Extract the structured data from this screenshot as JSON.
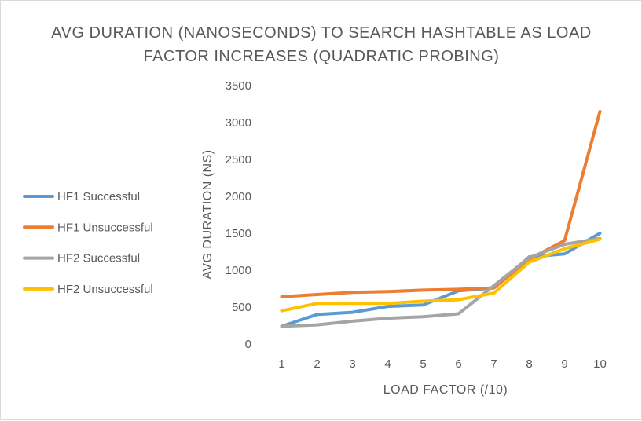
{
  "chart_data": {
    "type": "line",
    "title_lines": [
      "AVG DURATION (NANOSECONDS) TO SEARCH HASHTABLE AS LOAD",
      "FACTOR INCREASES (QUADRATIC PROBING)"
    ],
    "xlabel": "LOAD FACTOR (/10)",
    "ylabel": "AVG DURATION (NS)",
    "categories": [
      "1",
      "2",
      "3",
      "4",
      "5",
      "6",
      "7",
      "8",
      "9",
      "10"
    ],
    "ylim": [
      0,
      3500
    ],
    "yticks": [
      0,
      500,
      1000,
      1500,
      2000,
      2500,
      3000,
      3500
    ],
    "grid": false,
    "legend_position": "left",
    "series": [
      {
        "name": "HF1 Successful",
        "color": "#5B9BD5",
        "values": [
          240,
          400,
          430,
          510,
          530,
          720,
          760,
          1180,
          1220,
          1500
        ]
      },
      {
        "name": "HF1 Unsuccessful",
        "color": "#ED7D31",
        "values": [
          640,
          670,
          700,
          710,
          730,
          740,
          760,
          1150,
          1400,
          3150
        ]
      },
      {
        "name": "HF2 Successful",
        "color": "#A5A5A5",
        "values": [
          240,
          260,
          310,
          350,
          370,
          410,
          790,
          1170,
          1350,
          1430
        ]
      },
      {
        "name": "HF2 Unsuccessful",
        "color": "#FFC000",
        "values": [
          450,
          550,
          550,
          550,
          580,
          600,
          690,
          1110,
          1290,
          1420
        ]
      }
    ]
  }
}
